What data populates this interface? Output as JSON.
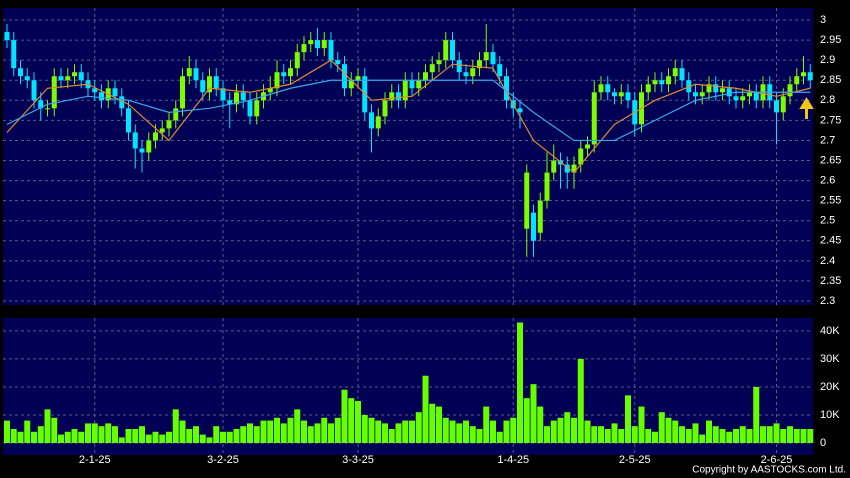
{
  "chart_data": [
    {
      "type": "candlestick",
      "up_color": "#7cfc00",
      "down_color": "#00e5ff",
      "grid": true,
      "ylim": [
        2.29,
        3.03
      ],
      "yticks": [
        2.3,
        2.35,
        2.4,
        2.45,
        2.5,
        2.55,
        2.6,
        2.65,
        2.7,
        2.75,
        2.8,
        2.85,
        2.9,
        2.95,
        3
      ],
      "open": [
        2.97,
        2.95,
        2.88,
        2.86,
        2.85,
        2.8,
        2.78,
        2.78,
        2.86,
        2.85,
        2.86,
        2.87,
        2.85,
        2.83,
        2.82,
        2.8,
        2.83,
        2.81,
        2.78,
        2.72,
        2.68,
        2.67,
        2.7,
        2.72,
        2.73,
        2.75,
        2.78,
        2.86,
        2.88,
        2.85,
        2.82,
        2.86,
        2.83,
        2.8,
        2.79,
        2.82,
        2.8,
        2.76,
        2.8,
        2.82,
        2.83,
        2.87,
        2.86,
        2.88,
        2.92,
        2.94,
        2.95,
        2.93,
        2.95,
        2.9,
        2.89,
        2.83,
        2.85,
        2.86,
        2.77,
        2.73,
        2.76,
        2.8,
        2.82,
        2.8,
        2.85,
        2.83,
        2.85,
        2.87,
        2.89,
        2.9,
        2.95,
        2.9,
        2.87,
        2.86,
        2.88,
        2.9,
        2.92,
        2.89,
        2.86,
        2.8,
        2.78,
        2.48,
        2.52,
        2.47,
        2.55,
        2.62,
        2.65,
        2.64,
        2.62,
        2.64,
        2.68,
        2.69,
        2.82,
        2.84,
        2.82,
        2.81,
        2.82,
        2.8,
        2.74,
        2.82,
        2.84,
        2.85,
        2.84,
        2.86,
        2.88,
        2.85,
        2.82,
        2.81,
        2.82,
        2.84,
        2.82,
        2.83,
        2.81,
        2.8,
        2.81,
        2.82,
        2.8,
        2.84,
        2.8,
        2.77,
        2.81,
        2.84,
        2.86,
        2.87
      ],
      "high": [
        2.99,
        2.97,
        2.9,
        2.88,
        2.87,
        2.82,
        2.8,
        2.88,
        2.88,
        2.88,
        2.89,
        2.89,
        2.87,
        2.85,
        2.84,
        2.85,
        2.85,
        2.83,
        2.8,
        2.74,
        2.7,
        2.72,
        2.74,
        2.75,
        2.77,
        2.8,
        2.88,
        2.91,
        2.9,
        2.87,
        2.88,
        2.88,
        2.85,
        2.82,
        2.84,
        2.84,
        2.82,
        2.82,
        2.84,
        2.86,
        2.9,
        2.89,
        2.9,
        2.94,
        2.96,
        2.97,
        2.98,
        2.97,
        2.97,
        2.92,
        2.91,
        2.87,
        2.88,
        2.88,
        2.79,
        2.78,
        2.82,
        2.84,
        2.84,
        2.87,
        2.87,
        2.87,
        2.89,
        2.91,
        2.92,
        2.97,
        2.97,
        2.92,
        2.89,
        2.9,
        2.92,
        2.99,
        2.94,
        2.91,
        2.88,
        2.82,
        2.8,
        2.64,
        2.54,
        2.57,
        2.67,
        2.69,
        2.67,
        2.66,
        2.66,
        2.7,
        2.71,
        2.85,
        2.86,
        2.86,
        2.83,
        2.84,
        2.84,
        2.82,
        2.84,
        2.86,
        2.87,
        2.87,
        2.88,
        2.9,
        2.9,
        2.87,
        2.84,
        2.84,
        2.86,
        2.86,
        2.85,
        2.85,
        2.83,
        2.83,
        2.84,
        2.84,
        2.86,
        2.86,
        2.82,
        2.83,
        2.86,
        2.88,
        2.91,
        2.89
      ],
      "low": [
        2.93,
        2.86,
        2.84,
        2.83,
        2.78,
        2.75,
        2.76,
        2.76,
        2.83,
        2.83,
        2.84,
        2.83,
        2.81,
        2.8,
        2.78,
        2.78,
        2.79,
        2.76,
        2.7,
        2.63,
        2.62,
        2.65,
        2.68,
        2.7,
        2.71,
        2.73,
        2.76,
        2.84,
        2.83,
        2.8,
        2.8,
        2.81,
        2.78,
        2.73,
        2.77,
        2.78,
        2.74,
        2.74,
        2.78,
        2.8,
        2.81,
        2.84,
        2.84,
        2.86,
        2.9,
        2.92,
        2.91,
        2.91,
        2.88,
        2.87,
        2.81,
        2.81,
        2.83,
        2.75,
        2.67,
        2.71,
        2.74,
        2.78,
        2.78,
        2.78,
        2.81,
        2.81,
        2.83,
        2.85,
        2.87,
        2.88,
        2.88,
        2.85,
        2.84,
        2.84,
        2.86,
        2.88,
        2.87,
        2.84,
        2.78,
        2.76,
        2.73,
        2.41,
        2.41,
        2.45,
        2.53,
        2.6,
        2.58,
        2.58,
        2.58,
        2.62,
        2.66,
        2.67,
        2.8,
        2.8,
        2.79,
        2.79,
        2.78,
        2.71,
        2.72,
        2.8,
        2.82,
        2.82,
        2.82,
        2.84,
        2.83,
        2.8,
        2.79,
        2.79,
        2.8,
        2.8,
        2.8,
        2.79,
        2.78,
        2.78,
        2.79,
        2.78,
        2.78,
        2.78,
        2.69,
        2.75,
        2.79,
        2.82,
        2.84,
        2.83
      ],
      "close": [
        2.95,
        2.88,
        2.86,
        2.85,
        2.8,
        2.78,
        2.78,
        2.86,
        2.85,
        2.86,
        2.87,
        2.85,
        2.83,
        2.82,
        2.8,
        2.83,
        2.81,
        2.78,
        2.72,
        2.68,
        2.67,
        2.7,
        2.72,
        2.73,
        2.75,
        2.78,
        2.86,
        2.88,
        2.85,
        2.82,
        2.86,
        2.83,
        2.8,
        2.79,
        2.82,
        2.8,
        2.76,
        2.8,
        2.82,
        2.83,
        2.87,
        2.86,
        2.88,
        2.92,
        2.94,
        2.95,
        2.93,
        2.95,
        2.9,
        2.89,
        2.83,
        2.85,
        2.86,
        2.77,
        2.73,
        2.76,
        2.8,
        2.82,
        2.8,
        2.85,
        2.83,
        2.85,
        2.87,
        2.89,
        2.9,
        2.95,
        2.9,
        2.87,
        2.86,
        2.88,
        2.9,
        2.92,
        2.89,
        2.86,
        2.8,
        2.78,
        2.77,
        2.62,
        2.45,
        2.55,
        2.62,
        2.65,
        2.64,
        2.62,
        2.64,
        2.68,
        2.69,
        2.82,
        2.84,
        2.82,
        2.81,
        2.82,
        2.8,
        2.74,
        2.82,
        2.84,
        2.85,
        2.84,
        2.86,
        2.88,
        2.85,
        2.82,
        2.81,
        2.82,
        2.84,
        2.82,
        2.83,
        2.81,
        2.8,
        2.81,
        2.82,
        2.8,
        2.84,
        2.8,
        2.77,
        2.81,
        2.84,
        2.86,
        2.87,
        2.85
      ],
      "lines": [
        {
          "color": "#e08a2e",
          "x": [
            0,
            6,
            12,
            18,
            24,
            30,
            36,
            42,
            48,
            54,
            60,
            66,
            72,
            78,
            84,
            90,
            96,
            102,
            108,
            114,
            119
          ],
          "values": [
            2.72,
            2.83,
            2.84,
            2.79,
            2.7,
            2.83,
            2.82,
            2.84,
            2.9,
            2.8,
            2.81,
            2.89,
            2.88,
            2.7,
            2.62,
            2.74,
            2.8,
            2.84,
            2.83,
            2.81,
            2.83
          ]
        },
        {
          "color": "#3aa8e8",
          "x": [
            0,
            6,
            12,
            18,
            24,
            30,
            36,
            42,
            48,
            54,
            60,
            66,
            72,
            78,
            84,
            90,
            96,
            102,
            108,
            114,
            119
          ],
          "values": [
            2.74,
            2.79,
            2.81,
            2.8,
            2.77,
            2.78,
            2.8,
            2.83,
            2.85,
            2.85,
            2.85,
            2.85,
            2.85,
            2.77,
            2.7,
            2.7,
            2.75,
            2.8,
            2.82,
            2.82,
            2.82
          ]
        }
      ]
    },
    {
      "type": "bar",
      "color": "#66ff00",
      "grid": true,
      "ylim": [
        0,
        44600
      ],
      "yticks": [
        0,
        {
          "value": 10000,
          "label": "10K"
        },
        {
          "value": 20000,
          "label": "20K"
        },
        {
          "value": 30000,
          "label": "30K"
        },
        {
          "value": 40000,
          "label": "40K"
        }
      ],
      "categories": [
        null,
        null,
        null,
        null,
        null,
        null,
        null,
        null,
        null,
        null,
        null,
        null,
        null,
        "2-1-25",
        null,
        null,
        null,
        null,
        null,
        null,
        null,
        null,
        null,
        null,
        null,
        null,
        null,
        null,
        null,
        null,
        null,
        null,
        "3-2-25",
        null,
        null,
        null,
        null,
        null,
        null,
        null,
        null,
        null,
        null,
        null,
        null,
        null,
        null,
        null,
        null,
        null,
        null,
        null,
        "3-3-25",
        null,
        null,
        null,
        null,
        null,
        null,
        null,
        null,
        null,
        null,
        null,
        null,
        null,
        null,
        null,
        null,
        null,
        null,
        null,
        null,
        null,
        null,
        "1-4-25",
        null,
        null,
        null,
        null,
        null,
        null,
        null,
        null,
        null,
        null,
        null,
        null,
        null,
        null,
        null,
        null,
        null,
        "2-5-25",
        null,
        null,
        null,
        null,
        null,
        null,
        null,
        null,
        null,
        null,
        null,
        null,
        null,
        null,
        null,
        null,
        null,
        null,
        null,
        null,
        "2-6-25",
        null,
        null,
        null,
        null,
        null
      ],
      "values": [
        8000,
        5000,
        4000,
        8000,
        4000,
        6000,
        12000,
        9000,
        3000,
        4000,
        5000,
        4000,
        7000,
        7000,
        6000,
        7000,
        6000,
        2000,
        5000,
        5000,
        6000,
        3000,
        4000,
        3000,
        4000,
        12000,
        8000,
        5000,
        6000,
        3000,
        2000,
        6000,
        4000,
        4000,
        5000,
        6000,
        7000,
        6000,
        8000,
        8000,
        9000,
        7000,
        9000,
        12000,
        8000,
        6000,
        7000,
        9000,
        7000,
        9000,
        19000,
        16000,
        15000,
        10000,
        9000,
        8000,
        7000,
        5000,
        7000,
        8000,
        8000,
        11000,
        24000,
        14000,
        13000,
        9000,
        8000,
        7000,
        8000,
        6000,
        5000,
        13000,
        8000,
        4000,
        8000,
        9000,
        43000,
        16000,
        21000,
        13000,
        6000,
        8000,
        9000,
        11000,
        9000,
        30000,
        8000,
        6000,
        6000,
        5000,
        7000,
        5000,
        17000,
        6000,
        13000,
        5000,
        4000,
        11000,
        9000,
        8000,
        6000,
        5000,
        7000,
        3000,
        8000,
        6000,
        5000,
        4000,
        5000,
        6000,
        5000,
        20000,
        6000,
        6000,
        7000,
        5000,
        6000,
        5000,
        5000,
        5000
      ]
    }
  ],
  "copyright": "Copyright by AASTOCKS.com Ltd."
}
